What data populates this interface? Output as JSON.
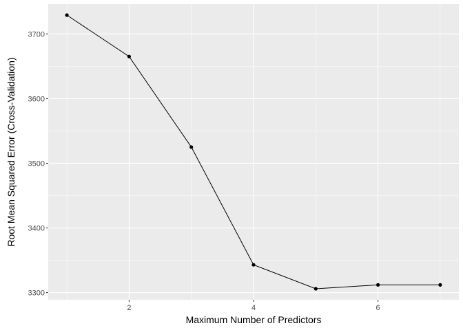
{
  "chart_data": {
    "type": "line",
    "title": "",
    "xlabel": "Maximum Number of Predictors",
    "ylabel": "Root Mean Squared Error (Cross-Validation)",
    "x": [
      1,
      2,
      3,
      4,
      5,
      6,
      7
    ],
    "series": [
      {
        "values": [
          3729,
          3665,
          3525,
          3343,
          3306,
          3312,
          3312
        ]
      }
    ],
    "xlim": [
      0.7,
      7.3
    ],
    "ylim": [
      3289,
      3746
    ],
    "x_ticks": [
      2,
      4,
      6
    ],
    "x_tick_labels": [
      "2",
      "4",
      "6"
    ],
    "y_ticks": [
      3300,
      3400,
      3500,
      3600,
      3700
    ],
    "y_tick_labels": [
      "3300",
      "3400",
      "3500",
      "3600",
      "3700"
    ],
    "grid": true,
    "legend": "none",
    "colors": {
      "panel": "#ebebeb",
      "grid": "#ffffff",
      "line": "#000000",
      "point": "#000000"
    }
  }
}
